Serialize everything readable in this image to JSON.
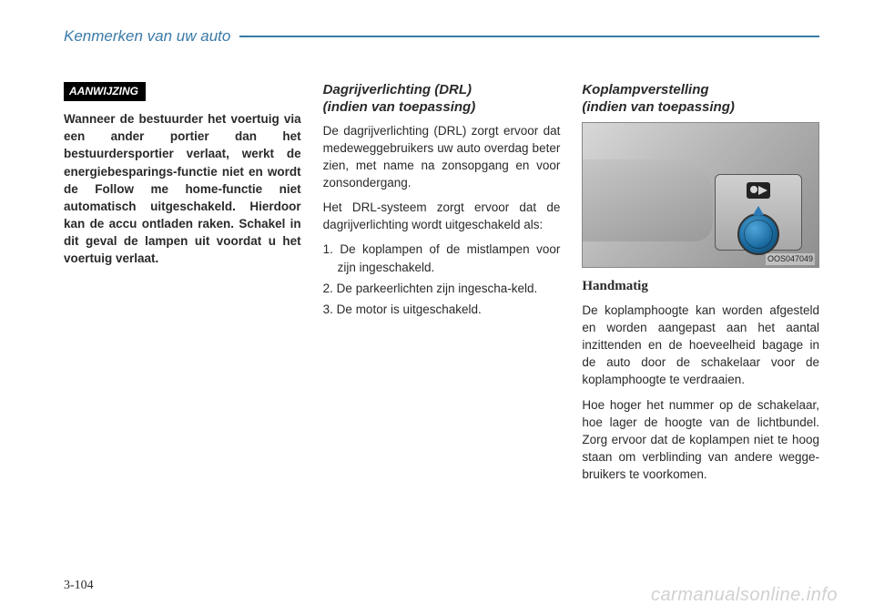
{
  "header": {
    "title": "Kenmerken van uw auto",
    "line_color": "#3a7aa8"
  },
  "col1": {
    "notice_label": "AANWIJZING",
    "notice_body": "Wanneer de bestuurder het voertuig via een ander portier dan het bestuurdersportier verlaat, werkt de energiebesparings-functie niet en wordt de Follow me home-functie niet automatisch uitgeschakeld. Hierdoor kan de accu ontladen raken. Schakel in dit geval de lampen uit voordat u het voertuig verlaat."
  },
  "col2": {
    "title_line1": "Dagrijverlichting (DRL)",
    "title_line2": "(indien van toepassing)",
    "p1": "De dagrijverlichting (DRL) zorgt ervoor dat medeweggebruikers uw auto overdag beter zien, met name na zonsopgang en voor zonsondergang.",
    "p2": "Het DRL-systeem zorgt ervoor dat de dagrijverlichting wordt uitgeschakeld als:",
    "li1": "1. De koplampen of de mistlampen voor zijn ingeschakeld.",
    "li2": "2. De parkeerlichten zijn ingescha-keld.",
    "li3": "3. De motor is uitgeschakeld."
  },
  "col3": {
    "title_line1": "Koplampverstelling",
    "title_line2": "(indien van toepassing)",
    "figure_code": "OOS047049",
    "subhead": "Handmatig",
    "p1": "De koplamphoogte kan worden afgesteld en worden aangepast aan het aantal inzittenden en de hoeveelheid bagage in de auto door de schakelaar voor de koplamphoogte te verdraaien.",
    "p2": "Hoe hoger het nummer op de schakelaar, hoe lager de hoogte van de lichtbundel. Zorg ervoor dat de koplampen niet te hoog staan om verblinding van andere wegge-bruikers te voorkomen."
  },
  "footer": {
    "page_num": "3-104",
    "watermark": "carmanualsonline.info"
  },
  "style": {
    "body_fontsize": 13.5,
    "title_color": "#3a7aa8",
    "dial_color_inner": "#1a6aa0",
    "arrow_color": "#2a7ab5"
  }
}
